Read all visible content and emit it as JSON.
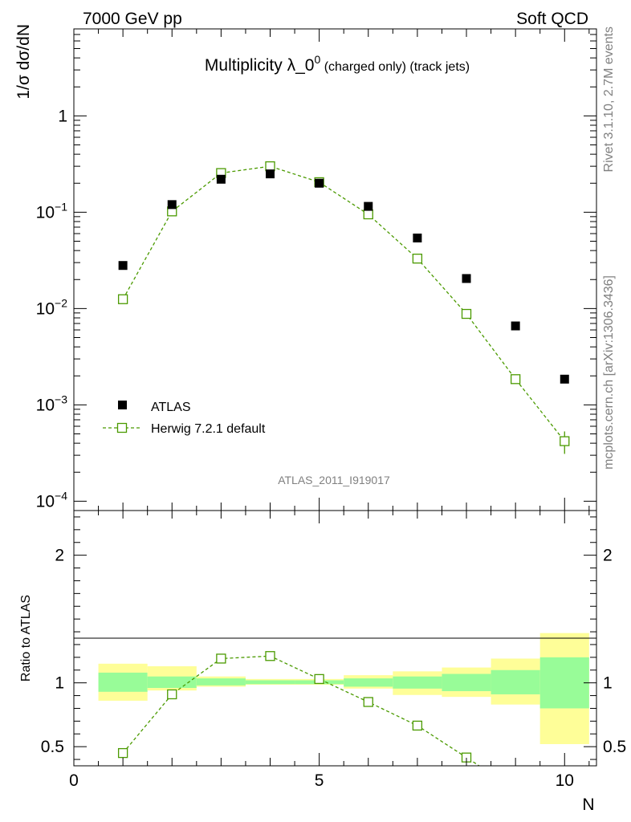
{
  "header": {
    "left": "7000 GeV pp",
    "right": "Soft QCD"
  },
  "title": {
    "main": "Multiplicity λ_0",
    "sup": "0",
    "sub": " (charged only) (track jets)"
  },
  "side_labels": {
    "rivet": "Rivet 3.1.10,  2.7M events",
    "mcplots": "mcplots.cern.ch [arXiv:1306.3436]"
  },
  "watermark": "ATLAS_2011_I919017",
  "chart_data": [
    {
      "type": "scatter",
      "panel": "main",
      "ylabel": "1/σ dσ/dN",
      "xlabel": "N",
      "yscale": "log",
      "xlim": [
        0,
        10.65
      ],
      "ylim": [
        8e-05,
        8
      ],
      "ytick_labels": [
        {
          "value": 1,
          "base": "1",
          "exp": ""
        },
        {
          "value": 0.1,
          "base": "10",
          "exp": "−1"
        },
        {
          "value": 0.01,
          "base": "10",
          "exp": "−2"
        },
        {
          "value": 0.001,
          "base": "10",
          "exp": "−3"
        },
        {
          "value": 0.0001,
          "base": "10",
          "exp": "−4"
        }
      ],
      "legend": {
        "position": "bottom-left",
        "data_label": "ATLAS",
        "mc_label": "Herwig 7.2.1 default"
      },
      "series": [
        {
          "name": "ATLAS",
          "x": [
            1,
            2,
            3,
            4,
            5,
            6,
            7,
            8,
            9,
            10
          ],
          "y": [
            0.028,
            0.12,
            0.22,
            0.25,
            0.2,
            0.115,
            0.054,
            0.0205,
            0.0066,
            0.00185
          ]
        },
        {
          "name": "Herwig 7.2.1 default",
          "x": [
            1,
            2,
            3,
            4,
            5,
            6,
            7,
            8,
            9,
            10
          ],
          "y": [
            0.0125,
            0.102,
            0.255,
            0.3,
            0.205,
            0.095,
            0.033,
            0.0088,
            0.00185,
            0.00042
          ],
          "yerr": [
            0.0006,
            0.002,
            0.003,
            0.003,
            0.003,
            0.002,
            0.001,
            0.0004,
            0.00015,
            0.00011
          ]
        }
      ]
    },
    {
      "type": "line",
      "panel": "ratio",
      "ylabel": "Ratio to ATLAS",
      "xlabel": "N",
      "xlim": [
        0,
        10.65
      ],
      "ylim": [
        0.35,
        2.35
      ],
      "yticks": [
        0.5,
        1,
        2
      ],
      "xticks": [
        0,
        5,
        10
      ],
      "series": [
        {
          "name": "Herwig 7.2.1 default",
          "x": [
            1,
            2,
            3,
            4,
            5,
            6,
            7,
            8
          ],
          "y": [
            0.45,
            0.91,
            1.19,
            1.21,
            1.03,
            0.85,
            0.665,
            0.415
          ],
          "yerr": [
            0.02,
            0.01,
            0.01,
            0.01,
            0.01,
            0.01,
            0.01,
            0.02
          ]
        }
      ],
      "bands": {
        "x_edges": [
          0.5,
          1.5,
          2.5,
          3.5,
          4.5,
          5.5,
          6.5,
          7.5,
          8.5,
          9.5,
          10.5
        ],
        "inner_lo": [
          0.93,
          0.96,
          0.98,
          0.99,
          0.99,
          0.97,
          0.955,
          0.935,
          0.91,
          0.8
        ],
        "inner_hi": [
          1.08,
          1.05,
          1.035,
          1.02,
          1.02,
          1.035,
          1.05,
          1.07,
          1.1,
          1.2
        ],
        "outer_lo": [
          0.86,
          0.94,
          0.97,
          0.985,
          0.985,
          0.955,
          0.905,
          0.89,
          0.83,
          0.52
        ],
        "outer_hi": [
          1.15,
          1.13,
          1.05,
          1.03,
          1.03,
          1.06,
          1.09,
          1.12,
          1.19,
          1.39
        ]
      }
    }
  ],
  "colors": {
    "mc": "#4b9a00",
    "data": "#000000",
    "band_inner": "#98fc98",
    "band_outer": "#fefe98",
    "grey": "#808080"
  }
}
